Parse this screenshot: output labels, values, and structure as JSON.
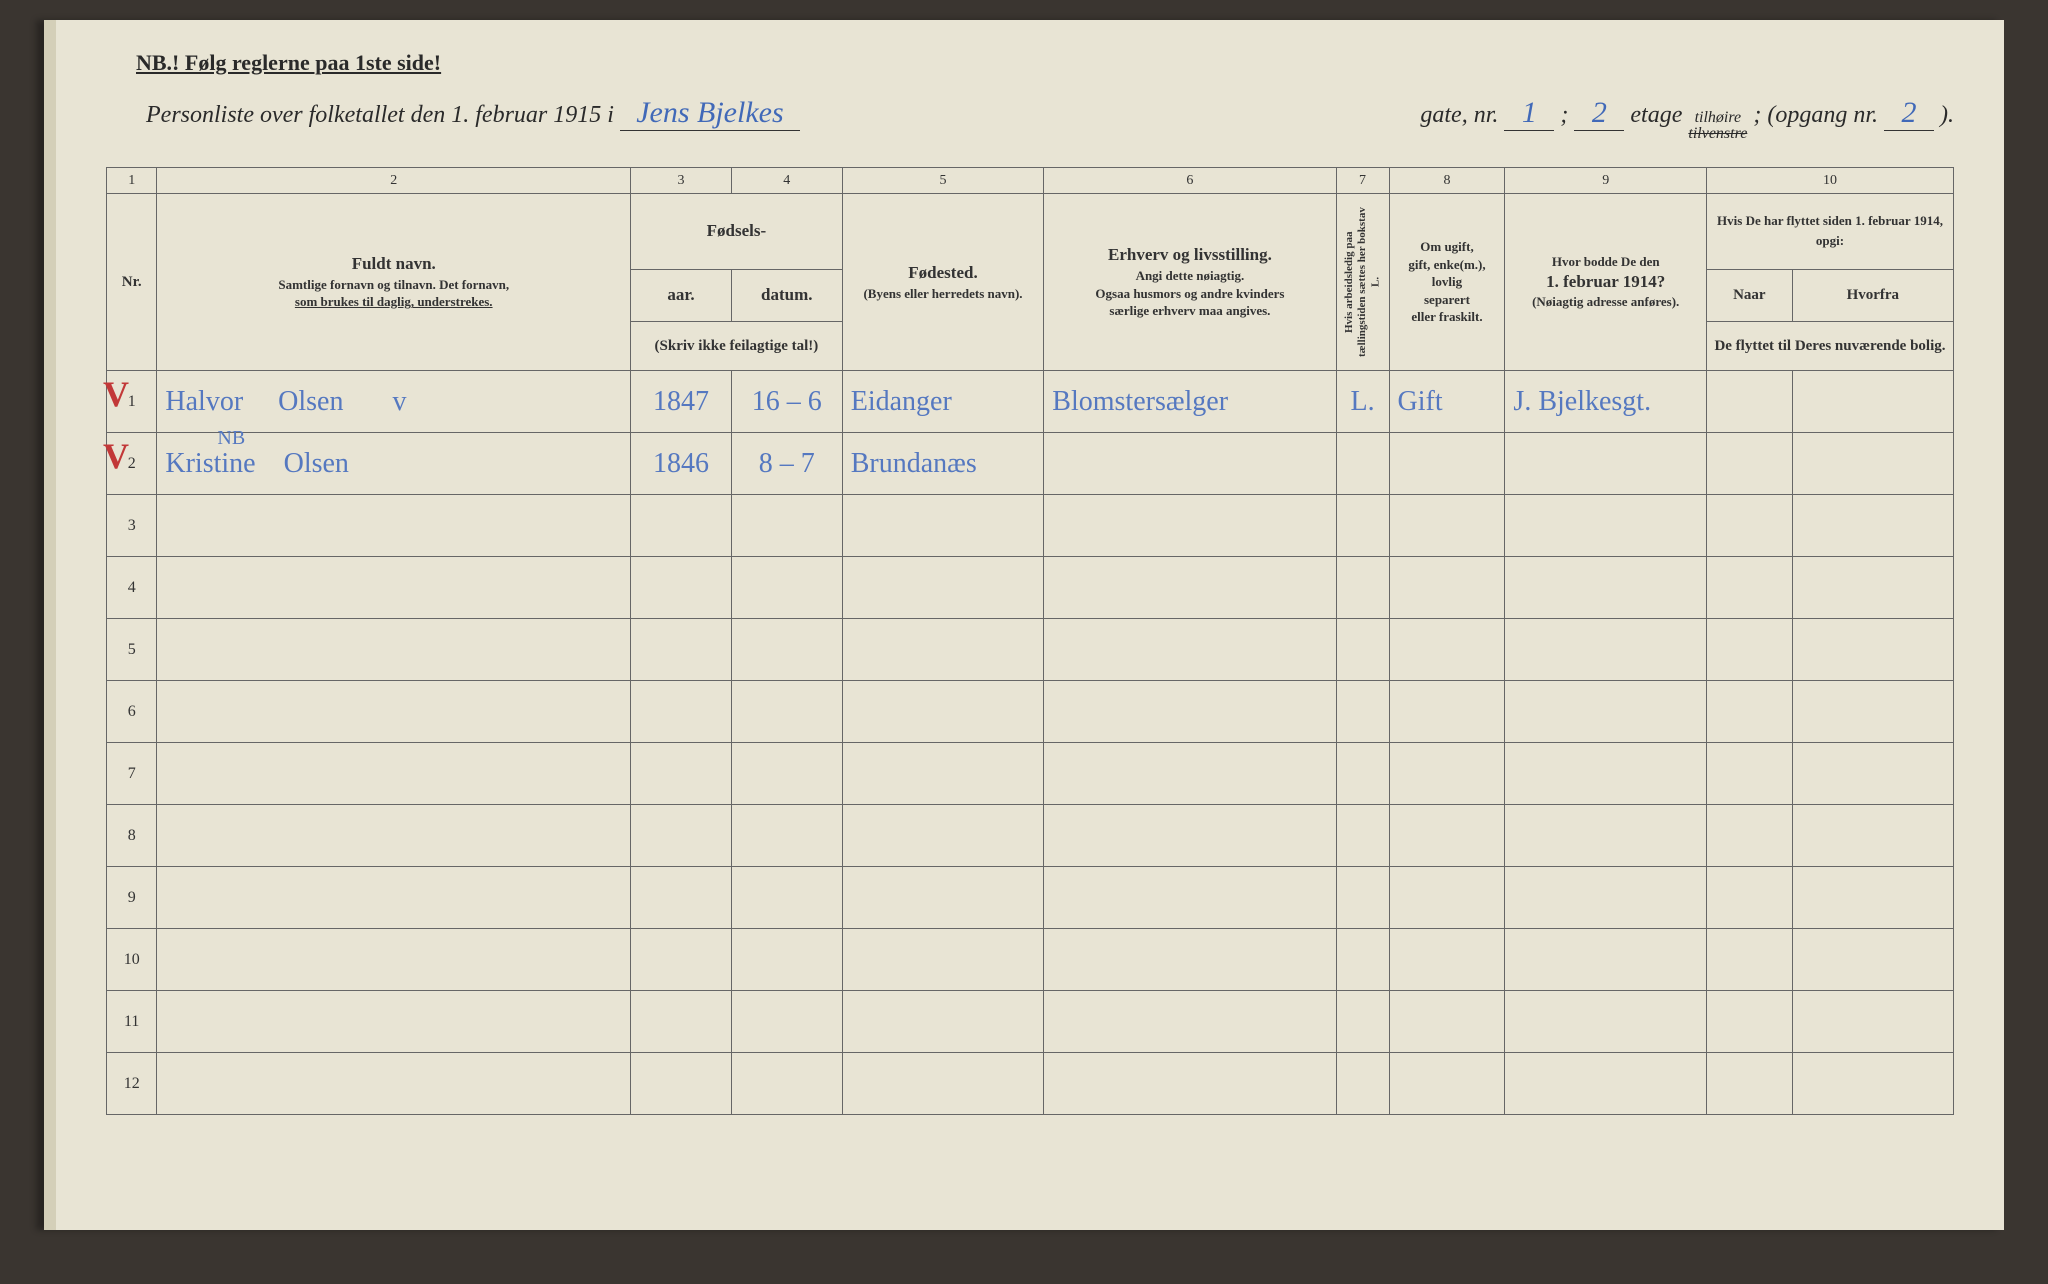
{
  "page": {
    "background_color": "#e8e4d4",
    "ink_color": "#2a2a2a",
    "handwriting_color": "#4169b8",
    "red_mark_color": "#c23838",
    "border_color": "#666666"
  },
  "header": {
    "nb_text": "NB.! Følg reglerne paa 1ste side!",
    "title_prefix": "Personliste over folketallet den 1. februar 1915 i",
    "street_name": "Jens Bjelkes",
    "gate_label": "gate, nr.",
    "gate_nr": "1",
    "semicolon": ";",
    "etage_nr": "2",
    "etage_label": "etage",
    "side_top": "tilhøire",
    "side_bottom": "tilvenstre",
    "opgang_label": "; (opgang nr.",
    "opgang_nr": "2",
    "close_paren": ")."
  },
  "column_numbers": [
    "1",
    "2",
    "3",
    "4",
    "5",
    "6",
    "7",
    "8",
    "9",
    "10"
  ],
  "headers": {
    "nr": "Nr.",
    "name_title": "Fuldt navn.",
    "name_sub1": "Samtlige fornavn og tilnavn. Det fornavn,",
    "name_sub2": "som brukes til daglig, understrekes.",
    "birth_title": "Fødsels-",
    "birth_year": "aar.",
    "birth_date": "datum.",
    "birth_note": "(Skriv ikke feilagtige tal!)",
    "birthplace_title": "Fødested.",
    "birthplace_sub": "(Byens eller herredets navn).",
    "occupation_title": "Erhverv og livsstilling.",
    "occupation_sub1": "Angi dette nøiagtig.",
    "occupation_sub2": "Ogsaa husmors og andre kvinders",
    "occupation_sub3": "særlige erhverv maa angives.",
    "col7": "Hvis arbeidsledig paa tællingstiden sættes her bokstav L.",
    "marital_sub1": "Om ugift,",
    "marital_sub2": "gift, enke(m.),",
    "marital_sub3": "lovlig",
    "marital_sub4": "separert",
    "marital_sub5": "eller fraskilt.",
    "addr_line1": "Hvor bodde De den",
    "addr_line2": "1. februar 1914?",
    "addr_sub": "(Nøiagtig adresse anføres).",
    "moved_title": "Hvis De har flyttet siden 1. februar 1914, opgi:",
    "moved_col1": "Naar",
    "moved_col2": "Hvorfra",
    "moved_sub": "De flyttet til Deres nuværende bolig."
  },
  "rows": [
    {
      "nr": "1",
      "name": "Halvor     Olsen       v",
      "year": "1847",
      "date": "16 – 6",
      "birthplace": "Eidanger",
      "occupation": "Blomstersælger",
      "col7": "L.",
      "marital": "Gift",
      "address": "J. Bjelkesgt.",
      "moved1": "",
      "moved2": "",
      "red_mark": "V",
      "nb_annotation": ""
    },
    {
      "nr": "2",
      "name": "Kristine    Olsen",
      "year": "1846",
      "date": "8 – 7",
      "birthplace": "Brundanæs",
      "occupation": "",
      "col7": "",
      "marital": "",
      "address": "",
      "moved1": "",
      "moved2": "",
      "red_mark": "V",
      "nb_annotation": "NB"
    },
    {
      "nr": "3",
      "name": "",
      "year": "",
      "date": "",
      "birthplace": "",
      "occupation": "",
      "col7": "",
      "marital": "",
      "address": "",
      "moved1": "",
      "moved2": ""
    },
    {
      "nr": "4",
      "name": "",
      "year": "",
      "date": "",
      "birthplace": "",
      "occupation": "",
      "col7": "",
      "marital": "",
      "address": "",
      "moved1": "",
      "moved2": ""
    },
    {
      "nr": "5",
      "name": "",
      "year": "",
      "date": "",
      "birthplace": "",
      "occupation": "",
      "col7": "",
      "marital": "",
      "address": "",
      "moved1": "",
      "moved2": ""
    },
    {
      "nr": "6",
      "name": "",
      "year": "",
      "date": "",
      "birthplace": "",
      "occupation": "",
      "col7": "",
      "marital": "",
      "address": "",
      "moved1": "",
      "moved2": ""
    },
    {
      "nr": "7",
      "name": "",
      "year": "",
      "date": "",
      "birthplace": "",
      "occupation": "",
      "col7": "",
      "marital": "",
      "address": "",
      "moved1": "",
      "moved2": ""
    },
    {
      "nr": "8",
      "name": "",
      "year": "",
      "date": "",
      "birthplace": "",
      "occupation": "",
      "col7": "",
      "marital": "",
      "address": "",
      "moved1": "",
      "moved2": ""
    },
    {
      "nr": "9",
      "name": "",
      "year": "",
      "date": "",
      "birthplace": "",
      "occupation": "",
      "col7": "",
      "marital": "",
      "address": "",
      "moved1": "",
      "moved2": ""
    },
    {
      "nr": "10",
      "name": "",
      "year": "",
      "date": "",
      "birthplace": "",
      "occupation": "",
      "col7": "",
      "marital": "",
      "address": "",
      "moved1": "",
      "moved2": ""
    },
    {
      "nr": "11",
      "name": "",
      "year": "",
      "date": "",
      "birthplace": "",
      "occupation": "",
      "col7": "",
      "marital": "",
      "address": "",
      "moved1": "",
      "moved2": ""
    },
    {
      "nr": "12",
      "name": "",
      "year": "",
      "date": "",
      "birthplace": "",
      "occupation": "",
      "col7": "",
      "marital": "",
      "address": "",
      "moved1": "",
      "moved2": ""
    }
  ]
}
